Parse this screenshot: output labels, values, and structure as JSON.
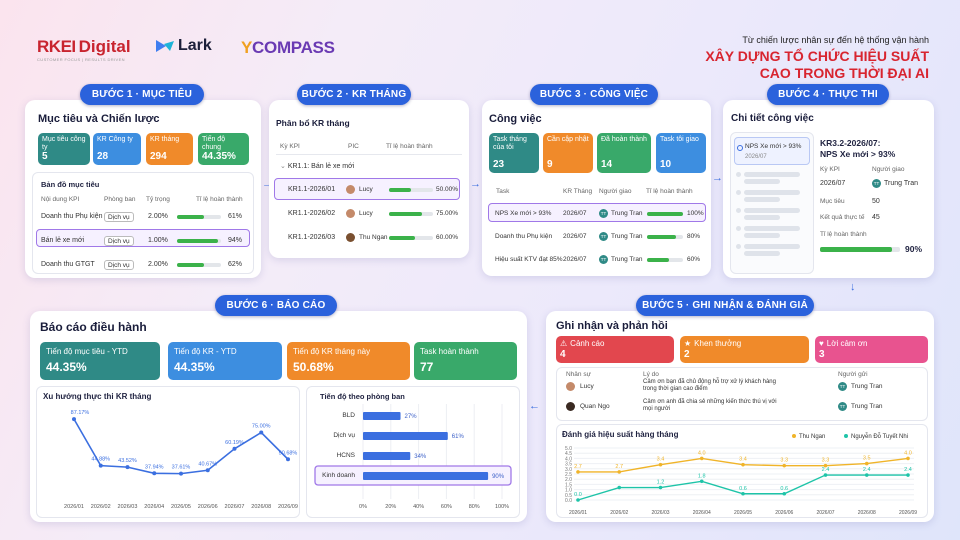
{
  "brand": {
    "rikkei": "RIKKEI Digital",
    "rikkei_tag": "CUSTOMER FOCUS | RESULTS DRIVEN",
    "lark": "Lark",
    "ycompass": "YCOMPASS"
  },
  "header": {
    "subtitle": "Từ chiến lược nhân sự đến hệ thống vận hành",
    "title1": "XÂY DỰNG TỔ CHỨC HIỆU SUẤT",
    "title2": "CAO TRONG THỜI ĐẠI AI"
  },
  "step1": {
    "label": "BƯỚC 1 · MỤC TIÊU",
    "title": "Mục tiêu và Chiến lược",
    "kpis": [
      {
        "label": "Mục tiêu công ty",
        "value": "5"
      },
      {
        "label": "KR Công ty",
        "value": "28"
      },
      {
        "label": "KR tháng",
        "value": "294"
      },
      {
        "label": "Tiến độ chung",
        "value": "44.35%"
      }
    ],
    "map_title": "Bản đồ mục tiêu",
    "cols": [
      "Nội dung KPI",
      "Phòng ban",
      "Tỷ trọng",
      "Tỉ lệ hoàn thành"
    ],
    "rows": [
      {
        "name": "Doanh thu Phụ kiện",
        "dept": "Dịch vụ",
        "weight": "2.00%",
        "pct": "61%",
        "p": 0.61
      },
      {
        "name": "Bán lẻ xe mới",
        "dept": "Dịch vụ",
        "weight": "1.00%",
        "pct": "94%",
        "p": 0.94
      },
      {
        "name": "Doanh thu GTGT",
        "dept": "Dịch vụ",
        "weight": "2.00%",
        "pct": "62%",
        "p": 0.62
      }
    ]
  },
  "step2": {
    "label": "BƯỚC 2 · KR THÁNG",
    "title": "Phân bổ KR tháng",
    "cols": [
      "Kỳ KPI",
      "PIC",
      "Tỉ lệ hoàn thành"
    ],
    "group": "KR1.1: Bán lẻ xe mới",
    "rows": [
      {
        "kr": "KR1.1-2026/01",
        "pic": "Lucy",
        "pct": "50.00%",
        "p": 0.5
      },
      {
        "kr": "KR1.1-2026/02",
        "pic": "Lucy",
        "pct": "75.00%",
        "p": 0.75
      },
      {
        "kr": "KR1.1-2026/03",
        "pic": "Thu Ngan",
        "pct": "60.00%",
        "p": 0.6
      }
    ]
  },
  "step3": {
    "label": "BƯỚC 3 · CÔNG VIỆC",
    "title": "Công việc",
    "kpis": [
      {
        "label": "Task tháng của tôi",
        "value": "23"
      },
      {
        "label": "Cần cập nhật",
        "value": "9"
      },
      {
        "label": "Đã hoàn thành",
        "value": "14"
      },
      {
        "label": "Task tôi giao",
        "value": "10"
      }
    ],
    "cols": [
      "Task",
      "KR Tháng",
      "Người giao",
      "Tỉ lệ hoàn thành"
    ],
    "rows": [
      {
        "task": "NPS Xe mới > 93%",
        "kr": "2026/07",
        "who": "Trung Tran",
        "pct": "100%",
        "p": 1
      },
      {
        "task": "Doanh thu Phụ kiện",
        "kr": "2026/07",
        "who": "Trung Tran",
        "pct": "80%",
        "p": 0.8
      },
      {
        "task": "Hiệu suất KTV đạt 85%",
        "kr": "2026/07",
        "who": "Trung Tran",
        "pct": "60%",
        "p": 0.6
      }
    ]
  },
  "step4": {
    "label": "BƯỚC 4 · THỰC THI",
    "title": "Chi tiết công việc",
    "item": "NPS Xe mới > 93%",
    "item_date": "2026/07",
    "detail_title1": "KR3.2-2026/07:",
    "detail_title2": "NPS Xe mới > 93%",
    "k1": "Kỳ KPI",
    "k2": "Người giao",
    "v1": "2026/07",
    "v2": "Trung Tran",
    "k3": "Mục tiêu",
    "v3": "50",
    "k4": "Kết quả thực tế",
    "v4": "45",
    "k5": "Tỉ lệ hoàn thành",
    "v5": "90%",
    "p": 0.9
  },
  "step5": {
    "label": "BƯỚC 5 · GHI NHẬN & ĐÁNH GIÁ",
    "title": "Ghi nhận và phản hồi",
    "badges": [
      {
        "label": "Cảnh cáo",
        "value": "4",
        "color": "#e2474e"
      },
      {
        "label": "Khen thưởng",
        "value": "2",
        "color": "#f08a2a"
      },
      {
        "label": "Lời cảm ơn",
        "value": "3",
        "color": "#e8538f"
      }
    ],
    "cols": [
      "Nhân sự",
      "Lý do",
      "Người gửi"
    ],
    "rows": [
      {
        "who": "Lucy",
        "reason": "Cảm ơn bạn đã chủ động hỗ trợ xử lý khách hàng trong thời gian cao điểm",
        "sender": "Trung Tran"
      },
      {
        "who": "Quan Ngo",
        "reason": "Cảm ơn anh đã chia sẻ những kiến thức thú vị với mọi người",
        "sender": "Trung Tran"
      }
    ],
    "chart_title": "Đánh giá hiệu suất hàng tháng"
  },
  "step6": {
    "label": "BƯỚC 6 · BÁO CÁO",
    "title": "Báo cáo điều hành",
    "kpis": [
      {
        "label": "Tiến độ mục tiêu - YTD",
        "value": "44.35%"
      },
      {
        "label": "Tiến độ KR - YTD",
        "value": "44.35%"
      },
      {
        "label": "Tiến độ KR tháng này",
        "value": "50.68%"
      },
      {
        "label": "Task hoàn thành",
        "value": "77"
      }
    ],
    "line_title": "Xu hướng thực thi KR tháng",
    "bar_title": "Tiến độ theo phòng ban"
  },
  "chart_data": [
    {
      "type": "line",
      "title": "Xu hướng thực thi KR tháng",
      "categories": [
        "2026/01",
        "2026/02",
        "2026/03",
        "2026/04",
        "2026/05",
        "2026/06",
        "2026/07",
        "2026/08",
        "2026/09"
      ],
      "labels": [
        "87.17%",
        "44.88%",
        "43.52%",
        "37.94%",
        "37.61%",
        "40.67%",
        "60.19%",
        "75.00%",
        "50.68%"
      ],
      "values": [
        87.17,
        44.88,
        43.52,
        37.94,
        37.61,
        40.67,
        60.19,
        75.0,
        50.68
      ],
      "color": "#3b6fe0"
    },
    {
      "type": "bar",
      "title": "Tiến độ theo phòng ban",
      "categories": [
        "BLD",
        "Dịch vụ",
        "HCNS",
        "Kinh doanh"
      ],
      "values": [
        27,
        61,
        34,
        90
      ],
      "ticks": [
        "0%",
        "20%",
        "40%",
        "60%",
        "80%",
        "100%"
      ],
      "xlim": [
        0,
        100
      ],
      "color": "#3b6fe0"
    },
    {
      "type": "line",
      "title": "Đánh giá hiệu suất hàng tháng",
      "categories": [
        "2026/01",
        "2026/02",
        "2026/03",
        "2026/04",
        "2026/05",
        "2026/06",
        "2026/07",
        "2026/08",
        "2026/09"
      ],
      "yticks": [
        "0.0",
        "0.5",
        "1.0",
        "1.5",
        "2.0",
        "2.5",
        "3.0",
        "3.5",
        "4.0",
        "4.5",
        "5.0"
      ],
      "ylim": [
        0,
        5
      ],
      "series": [
        {
          "name": "Thu Ngan",
          "color": "#f0b429",
          "values": [
            2.7,
            2.7,
            3.4,
            4.0,
            3.4,
            3.3,
            3.3,
            3.5,
            4.0
          ],
          "labels": [
            "2.7",
            "2.7",
            "3.4",
            "4.0",
            "3.4",
            "3.3",
            "3.3",
            "3.5",
            "4.0"
          ]
        },
        {
          "name": "Nguyễn Đỗ Tuyết Nhi",
          "color": "#1ec4a8",
          "values": [
            0.0,
            1.2,
            1.2,
            1.8,
            0.6,
            0.6,
            2.4,
            2.4,
            2.4
          ],
          "labels": [
            "0.0",
            "",
            "1.2",
            "1.8",
            "0.6",
            "0.6",
            "2.4",
            "2.4",
            "2.4"
          ]
        }
      ]
    }
  ]
}
